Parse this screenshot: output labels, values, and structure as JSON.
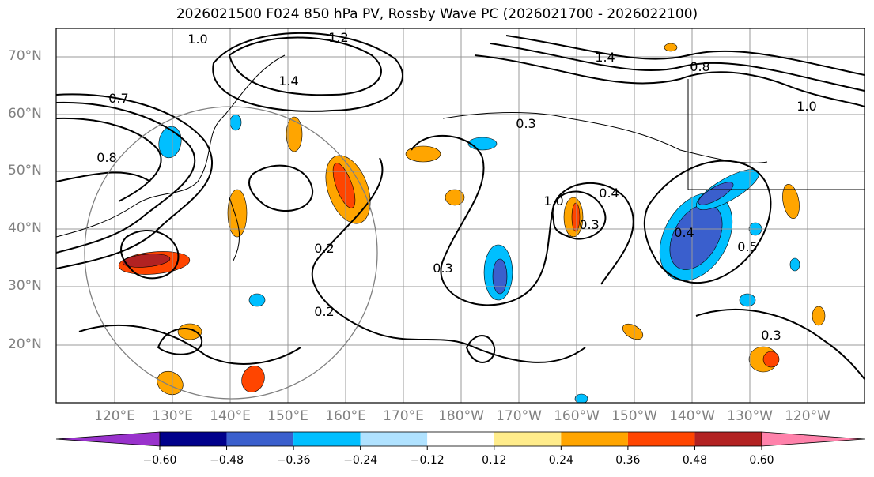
{
  "title": "2026021500 F024 850 hPa PV, Rossby Wave PC (2026021700 - 2026022100)",
  "lat_labels": [
    "70°N",
    "60°N",
    "50°N",
    "40°N",
    "30°N",
    "20°N"
  ],
  "lon_labels": [
    "120°E",
    "130°E",
    "140°E",
    "150°E",
    "160°E",
    "170°E",
    "180°W",
    "170°W",
    "160°W",
    "150°W",
    "140°W",
    "130°W",
    "120°W"
  ],
  "colorbar": {
    "ticks": [
      "−0.60",
      "−0.48",
      "−0.36",
      "−0.24",
      "−0.12",
      "0.12",
      "0.24",
      "0.36",
      "0.48",
      "0.60"
    ],
    "colors": [
      "#9932cc",
      "#00008b",
      "#3a5fcd",
      "#00bfff",
      "#b0e2ff",
      "#ffffff",
      "#ffec8b",
      "#ffa500",
      "#ff4500",
      "#b22222",
      "#ff82ab"
    ]
  },
  "contour_labels": [
    {
      "t": "1.0"
    },
    {
      "t": "1.2"
    },
    {
      "t": "1.4"
    },
    {
      "t": "1.4"
    },
    {
      "t": "1.0"
    },
    {
      "t": "0.8"
    },
    {
      "t": "0.3"
    },
    {
      "t": "1.0"
    },
    {
      "t": "0.4"
    },
    {
      "t": "0.3"
    },
    {
      "t": "0.4"
    },
    {
      "t": "0.5"
    },
    {
      "t": "0.3"
    },
    {
      "t": "0.2"
    },
    {
      "t": "0.2"
    },
    {
      "t": "0.8"
    },
    {
      "t": "0.3"
    },
    {
      "t": "0.7"
    }
  ]
}
